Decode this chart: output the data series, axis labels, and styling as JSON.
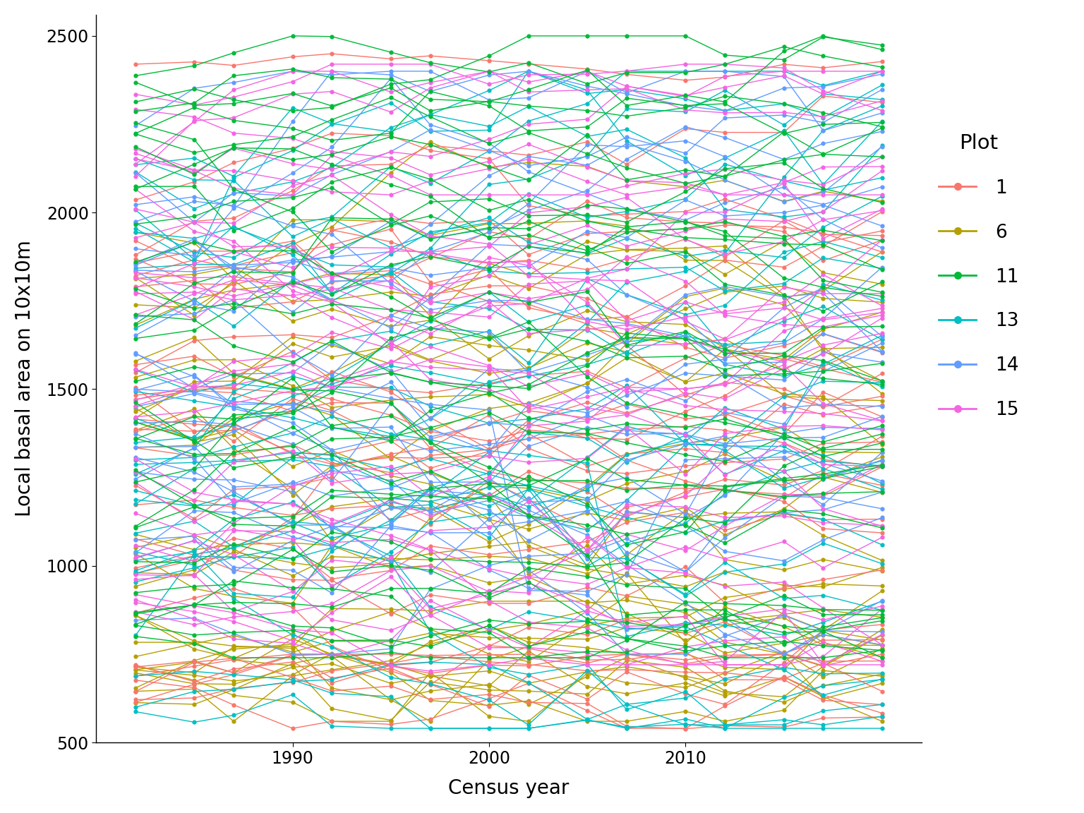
{
  "title": "",
  "xlabel": "Census year",
  "ylabel": "Local basal area on 10x10m",
  "ylim": [
    500,
    2560
  ],
  "yticks": [
    500,
    1000,
    1500,
    2000,
    2500
  ],
  "xticks": [
    1990,
    2000,
    2010
  ],
  "plot_colors": {
    "1": "#F8766D",
    "6": "#B5A000",
    "11": "#00BA38",
    "13": "#00BFC4",
    "14": "#619CFF",
    "15": "#F564E3"
  },
  "legend_title": "Plot",
  "legend_labels": [
    "1",
    "6",
    "11",
    "13",
    "14",
    "15"
  ],
  "background_color": "#FFFFFF",
  "n_lines_per_plot": 25,
  "linewidth": 1.0,
  "markersize": 4.5,
  "alpha": 1.0
}
